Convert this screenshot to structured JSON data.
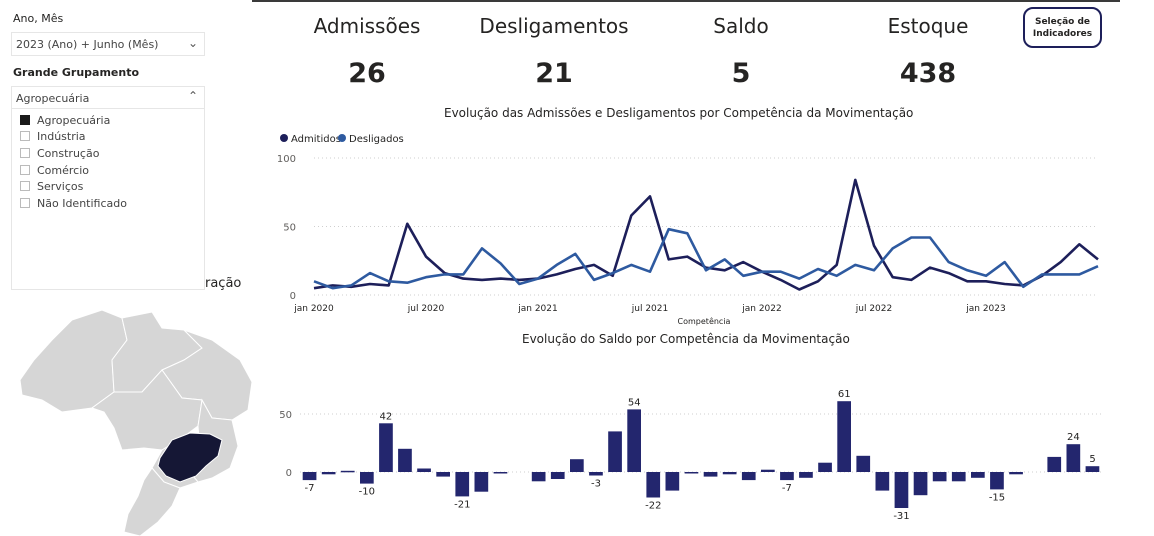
{
  "filters": {
    "ano_mes_label": "Ano, Mês",
    "ano_mes_value": "2023 (Ano) + Junho (Mês)",
    "grupamento_label": "Grande Grupamento",
    "grupamento_value": "Agropecuária",
    "grupamento_options": [
      {
        "label": "Agropecuária",
        "checked": true
      },
      {
        "label": "Indústria",
        "checked": false
      },
      {
        "label": "Construção",
        "checked": false
      },
      {
        "label": "Comércio",
        "checked": false
      },
      {
        "label": "Serviços",
        "checked": false
      },
      {
        "label": "Não Identificado",
        "checked": false
      }
    ]
  },
  "kpis": {
    "admissoes_label": "Admissões",
    "admissoes_value": "26",
    "desligamentos_label": "Desligamentos",
    "desligamentos_value": "21",
    "saldo_label": "Saldo",
    "saldo_value": "5",
    "estoque_label": "Estoque",
    "estoque_value": "438"
  },
  "selection_button": "Seleção de Indicadores",
  "map": {
    "title_fragment": "ração"
  },
  "colors": {
    "admitidos": "#1d1f5a",
    "desligados": "#2e5aa0",
    "bar": "#23266e",
    "map_fill": "#d6d6d6",
    "map_highlight": "#151735"
  },
  "chart_data": [
    {
      "type": "line",
      "title": "Evolução das Admissões e Desligamentos por Competência da Movimentação",
      "xlabel": "Competência",
      "ylabel": "",
      "ylim": [
        0,
        100
      ],
      "yticks": [
        0,
        50,
        100
      ],
      "x_tick_labels": [
        "jan 2020",
        "jul 2020",
        "jan 2021",
        "jul 2021",
        "jan 2022",
        "jul 2022",
        "jan 2023"
      ],
      "x_tick_index": [
        0,
        6,
        12,
        18,
        24,
        30,
        36
      ],
      "legend": "top-left",
      "series": [
        {
          "name": "Admitidos",
          "values": [
            5,
            7,
            6,
            8,
            7,
            52,
            28,
            16,
            12,
            11,
            12,
            11,
            12,
            15,
            19,
            22,
            14,
            58,
            72,
            26,
            28,
            20,
            18,
            24,
            17,
            11,
            4,
            10,
            22,
            84,
            36,
            13,
            11,
            20,
            16,
            10,
            10,
            8,
            7,
            14,
            24,
            37,
            26
          ]
        },
        {
          "name": "Desligados",
          "values": [
            10,
            5,
            7,
            16,
            10,
            9,
            13,
            15,
            15,
            34,
            23,
            8,
            12,
            22,
            30,
            11,
            16,
            22,
            17,
            48,
            45,
            18,
            26,
            14,
            17,
            17,
            12,
            19,
            14,
            22,
            18,
            34,
            42,
            42,
            24,
            18,
            14,
            24,
            6,
            15,
            15,
            15,
            21
          ]
        }
      ]
    },
    {
      "type": "bar",
      "title": "Evolução do Saldo por Competência da Movimentação",
      "ylim": [
        -35,
        70
      ],
      "yticks": [
        0,
        50
      ],
      "values": [
        -7,
        -2,
        1,
        -10,
        42,
        20,
        3,
        -4,
        -21,
        -17,
        -1,
        null,
        -8,
        -6,
        11,
        -3,
        35,
        54,
        -22,
        -16,
        0,
        -4,
        -2,
        -7,
        2,
        -7,
        -5,
        8,
        61,
        14,
        -16,
        -31,
        -20,
        -8,
        -8,
        -5,
        -15,
        -2,
        null,
        13,
        24,
        5
      ],
      "data_labels": [
        {
          "index": 0,
          "label": "-7"
        },
        {
          "index": 3,
          "label": "-10"
        },
        {
          "index": 4,
          "label": "42"
        },
        {
          "index": 8,
          "label": "-21"
        },
        {
          "index": 15,
          "label": "-3"
        },
        {
          "index": 17,
          "label": "54"
        },
        {
          "index": 18,
          "label": "-22"
        },
        {
          "index": 25,
          "label": "-7"
        },
        {
          "index": 28,
          "label": "61"
        },
        {
          "index": 31,
          "label": "-31"
        },
        {
          "index": 36,
          "label": "-15"
        },
        {
          "index": 40,
          "label": "24"
        },
        {
          "index": 41,
          "label": "5"
        }
      ]
    }
  ]
}
